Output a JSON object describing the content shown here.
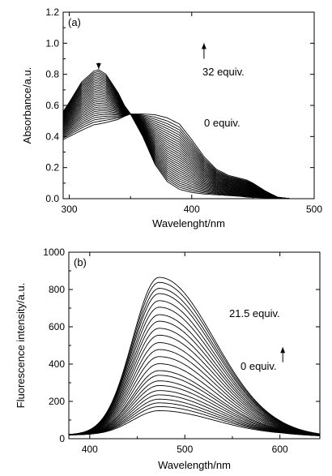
{
  "chart_data": [
    {
      "type": "line",
      "panel_label": "(a)",
      "xlabel": "Wavelenght/nm",
      "ylabel": "Absorbance/a.u.",
      "xlim": [
        295,
        500
      ],
      "ylim": [
        0,
        1.2
      ],
      "xticks": [
        "300",
        "400",
        "500"
      ],
      "xtick_values": [
        300,
        400,
        500
      ],
      "yticks": [
        "0.0",
        "0.2",
        "0.4",
        "0.6",
        "0.8",
        "1.0",
        "1.2"
      ],
      "ytick_values": [
        0,
        0.2,
        0.4,
        0.6,
        0.8,
        1.0,
        1.2
      ],
      "grid": false,
      "annotations": [
        {
          "text": "32 equiv.",
          "kind": "upper"
        },
        {
          "text": "0 equiv.",
          "kind": "lower"
        }
      ],
      "arrows": [
        {
          "direction": "down",
          "at": [
            324,
            0.875
          ],
          "to": [
            324,
            0.835
          ]
        },
        {
          "direction": "up",
          "at": [
            410,
            1.0
          ],
          "to": [
            410,
            0.9
          ]
        }
      ],
      "series_count": 30,
      "isosbestic_point": [
        350,
        0.545
      ],
      "first_spectrum": {
        "x": [
          295,
          300,
          310,
          320,
          324,
          330,
          340,
          345,
          350,
          360,
          370,
          380,
          390,
          400,
          410,
          420,
          430,
          440,
          445,
          450,
          460,
          470,
          480,
          490,
          500
        ],
        "y": [
          0.38,
          0.4,
          0.44,
          0.475,
          0.48,
          0.49,
          0.51,
          0.53,
          0.545,
          0.545,
          0.54,
          0.52,
          0.48,
          0.38,
          0.27,
          0.19,
          0.15,
          0.13,
          0.12,
          0.1,
          0.05,
          0.01,
          0.0,
          0.0,
          0.0
        ]
      },
      "last_spectrum": {
        "x": [
          295,
          300,
          310,
          320,
          324,
          330,
          340,
          345,
          350,
          360,
          370,
          380,
          390,
          400,
          410,
          420,
          430,
          440,
          445,
          450,
          460,
          470,
          480,
          490,
          500
        ],
        "y": [
          0.56,
          0.62,
          0.75,
          0.82,
          0.83,
          0.8,
          0.68,
          0.6,
          0.545,
          0.4,
          0.22,
          0.11,
          0.06,
          0.04,
          0.03,
          0.025,
          0.02,
          0.015,
          0.01,
          0.008,
          0.005,
          0.002,
          0.0,
          0.0,
          0.0
        ]
      }
    },
    {
      "type": "line",
      "panel_label": "(b)",
      "xlabel": "Wavelength/nm",
      "ylabel": "Fluorescence intensity/a.u.",
      "xlim": [
        378,
        642
      ],
      "ylim": [
        0,
        1000
      ],
      "xticks": [
        "400",
        "500",
        "600"
      ],
      "xtick_values": [
        400,
        500,
        600
      ],
      "yticks": [
        "0",
        "200",
        "400",
        "600",
        "800",
        "1000"
      ],
      "ytick_values": [
        0,
        200,
        400,
        600,
        800,
        1000
      ],
      "grid": false,
      "annotations": [
        {
          "text": "21.5 equiv.",
          "kind": "upper"
        },
        {
          "text": "0 equiv.",
          "kind": "lower"
        }
      ],
      "arrows": [
        {
          "direction": "up",
          "at": [
            603,
            490
          ],
          "to": [
            603,
            410
          ]
        }
      ],
      "series_count": 24,
      "peak_wavelength": 473,
      "baseline": 20,
      "peak_max_values": [
        865,
        838,
        806,
        778,
        740,
        705,
        665,
        630,
        592,
        555,
        515,
        478,
        440,
        402,
        365,
        340,
        310,
        285,
        258,
        235,
        212,
        192,
        172,
        150
      ]
    }
  ],
  "style": {
    "line_color": "#000000",
    "background": "#ffffff"
  }
}
